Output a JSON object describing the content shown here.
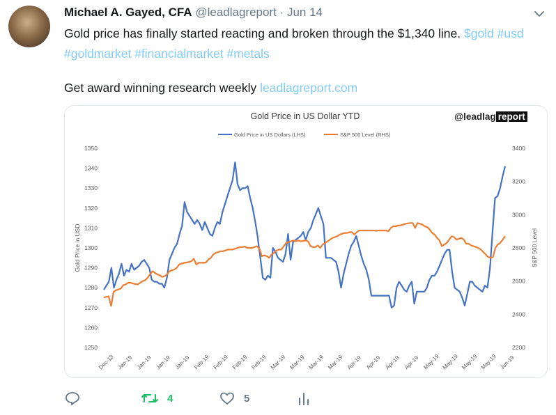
{
  "tweet": {
    "author_name": "Michael A. Gayed, CFA",
    "handle": "@leadlagreport",
    "separator": "·",
    "date": "Jun 14",
    "text_main": "Gold price has finally started reacting and broken through the $1,340 line.",
    "hashtags": "$gold #usd #goldmarket #financialmarket #metals",
    "text_cta": "Get award winning research weekly",
    "cta_link": "leadlagreport.com"
  },
  "actions": {
    "retweet_count": "4",
    "like_count": "5",
    "retweet_color": "#17bf63"
  },
  "chart_data": {
    "type": "line",
    "title": "Gold Price in US Dollar YTD",
    "brand_prefix": "@leadlag",
    "brand_suffix": "report",
    "ylabel_left": "Gold Price in USD",
    "ylabel_right": "S&P 500 Level",
    "ylim_left": [
      1250,
      1350
    ],
    "ylim_right": [
      2200,
      3400
    ],
    "yticks_left": [
      "1250",
      "1260",
      "1270",
      "1280",
      "1290",
      "1300",
      "1310",
      "1320",
      "1330",
      "1340",
      "1350"
    ],
    "yticks_right": [
      "2200",
      "2400",
      "2600",
      "2800",
      "3000",
      "3200",
      "3400"
    ],
    "xticks": [
      "Dec-18",
      "Jan-19",
      "Jan-19",
      "Jan-19",
      "Jan-19",
      "Feb-19",
      "Feb-19",
      "Feb-19",
      "Feb-19",
      "Mar-19",
      "Mar-19",
      "Mar-19",
      "Mar-19",
      "Apr-19",
      "Apr-19",
      "Apr-19",
      "Apr-19",
      "May-19",
      "May-19",
      "May-19",
      "May-19",
      "Jun-19"
    ],
    "legend_position": "top",
    "grid": false,
    "series": [
      {
        "name": "Gold Price in US Dollars (LHS)",
        "axis": "left",
        "color": "#4472c4",
        "values": [
          1279,
          1281,
          1283,
          1290,
          1280,
          1284,
          1287,
          1292,
          1286,
          1289,
          1288,
          1292,
          1289,
          1290,
          1291,
          1293,
          1294,
          1292,
          1290,
          1284,
          1283,
          1283,
          1282,
          1282,
          1280,
          1285,
          1294,
          1297,
          1300,
          1302,
          1307,
          1311,
          1323,
          1318,
          1316,
          1314,
          1312,
          1314,
          1312,
          1309,
          1313,
          1310,
          1307,
          1306,
          1310,
          1313,
          1312,
          1318,
          1322,
          1326,
          1330,
          1334,
          1343,
          1332,
          1329,
          1330,
          1330,
          1331,
          1325,
          1320,
          1313,
          1305,
          1295,
          1285,
          1284,
          1286,
          1285,
          1300,
          1298,
          1295,
          1294,
          1293,
          1297,
          1307,
          1294,
          1303,
          1304,
          1305,
          1306,
          1308,
          1304,
          1308,
          1310,
          1314,
          1317,
          1320,
          1316,
          1312,
          1295,
          1295,
          1295,
          1294,
          1293,
          1288,
          1280,
          1287,
          1292,
          1297,
          1301,
          1303,
          1306,
          1301,
          1296,
          1292,
          1289,
          1284,
          1276,
          1276,
          1276,
          1276,
          1276,
          1276,
          1276,
          1276,
          1270,
          1271,
          1280,
          1283,
          1281,
          1279,
          1278,
          1281,
          1283,
          1272,
          1278,
          1278,
          1278,
          1278,
          1280,
          1284,
          1286,
          1286,
          1288,
          1291,
          1294,
          1297,
          1299,
          1299,
          1288,
          1280,
          1279,
          1278,
          1275,
          1271,
          1277,
          1283,
          1283,
          1281,
          1280,
          1279,
          1278,
          1281,
          1280,
          1290,
          1308,
          1325,
          1326,
          1330,
          1336,
          1341
        ]
      },
      {
        "name": "S&P 500 Level (RHS)",
        "axis": "right",
        "color": "#ed7d31",
        "values": [
          2500,
          2505,
          2508,
          2450,
          2535,
          2545,
          2550,
          2555,
          2575,
          2580,
          2590,
          2590,
          2585,
          2582,
          2580,
          2590,
          2600,
          2605,
          2620,
          2640,
          2660,
          2650,
          2640,
          2635,
          2625,
          2630,
          2640,
          2660,
          2665,
          2670,
          2680,
          2700,
          2705,
          2710,
          2712,
          2715,
          2720,
          2735,
          2700,
          2710,
          2710,
          2710,
          2712,
          2730,
          2740,
          2760,
          2770,
          2775,
          2780,
          2780,
          2785,
          2790,
          2790,
          2790,
          2795,
          2800,
          2805,
          2805,
          2808,
          2800,
          2800,
          2800,
          2805,
          2810,
          2795,
          2750,
          2755,
          2750,
          2740,
          2760,
          2770,
          2785,
          2790,
          2790,
          2810,
          2830,
          2835,
          2840,
          2845,
          2840,
          2845,
          2840,
          2842,
          2845,
          2840,
          2810,
          2805,
          2805,
          2815,
          2800,
          2820,
          2830,
          2840,
          2850,
          2860,
          2865,
          2870,
          2880,
          2885,
          2890,
          2890,
          2895,
          2895,
          2880,
          2895,
          2905,
          2905,
          2905,
          2905,
          2905,
          2905,
          2905,
          2903,
          2905,
          2905,
          2905,
          2905,
          2900,
          2920,
          2930,
          2930,
          2935,
          2935,
          2940,
          2945,
          2948,
          2950,
          2950,
          2920,
          2950,
          2945,
          2940,
          2930,
          2925,
          2910,
          2890,
          2880,
          2860,
          2845,
          2810,
          2820,
          2830,
          2850,
          2870,
          2865,
          2850,
          2855,
          2860,
          2850,
          2825,
          2825,
          2815,
          2810,
          2805,
          2800,
          2790,
          2775,
          2760,
          2745,
          2740,
          2745,
          2800,
          2820,
          2830,
          2850,
          2870
        ]
      }
    ]
  }
}
